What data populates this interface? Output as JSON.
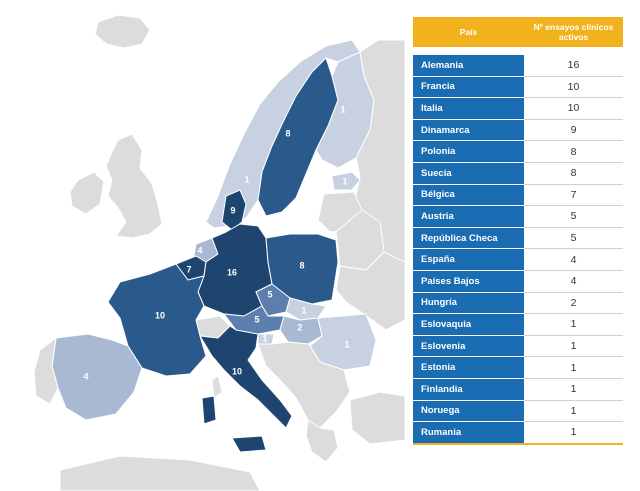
{
  "colors": {
    "max": "#1e4470",
    "high": "#2a5a8c",
    "mid": "#5d7fae",
    "low": "#a9b9d4",
    "lowest": "#c8d1e2",
    "none": "#dcdcdc",
    "header": "#f1b21d",
    "row_label": "#1a6db3"
  },
  "map": {
    "labels": {
      "germany": "16",
      "france": "10",
      "italy": "10",
      "denmark": "9",
      "poland": "8",
      "sweden": "8",
      "belgium": "7",
      "austria": "5",
      "czech": "5",
      "spain": "4",
      "netherlands": "4",
      "hungary": "2",
      "slovakia": "1",
      "slovenia": "1",
      "estonia": "1",
      "finland": "1",
      "norway": "1",
      "romania": "1"
    }
  },
  "table": {
    "header_country": "País",
    "header_count": "Nº ensayos clínicos activos",
    "rows": [
      {
        "country": "Alemania",
        "value": "16"
      },
      {
        "country": "Francia",
        "value": "10"
      },
      {
        "country": "Italia",
        "value": "10"
      },
      {
        "country": "Dinamarca",
        "value": "9"
      },
      {
        "country": "Polonia",
        "value": "8"
      },
      {
        "country": "Suecia",
        "value": "8"
      },
      {
        "country": "Bélgica",
        "value": "7"
      },
      {
        "country": "Austria",
        "value": "5"
      },
      {
        "country": "República Checa",
        "value": "5"
      },
      {
        "country": "España",
        "value": "4"
      },
      {
        "country": "Países Bajos",
        "value": "4"
      },
      {
        "country": "Hungría",
        "value": "2"
      },
      {
        "country": "Eslovaquia",
        "value": "1"
      },
      {
        "country": "Eslovenia",
        "value": "1"
      },
      {
        "country": "Estonia",
        "value": "1"
      },
      {
        "country": "Finlandia",
        "value": "1"
      },
      {
        "country": "Noruega",
        "value": "1"
      },
      {
        "country": "Rumania",
        "value": "1"
      }
    ]
  }
}
